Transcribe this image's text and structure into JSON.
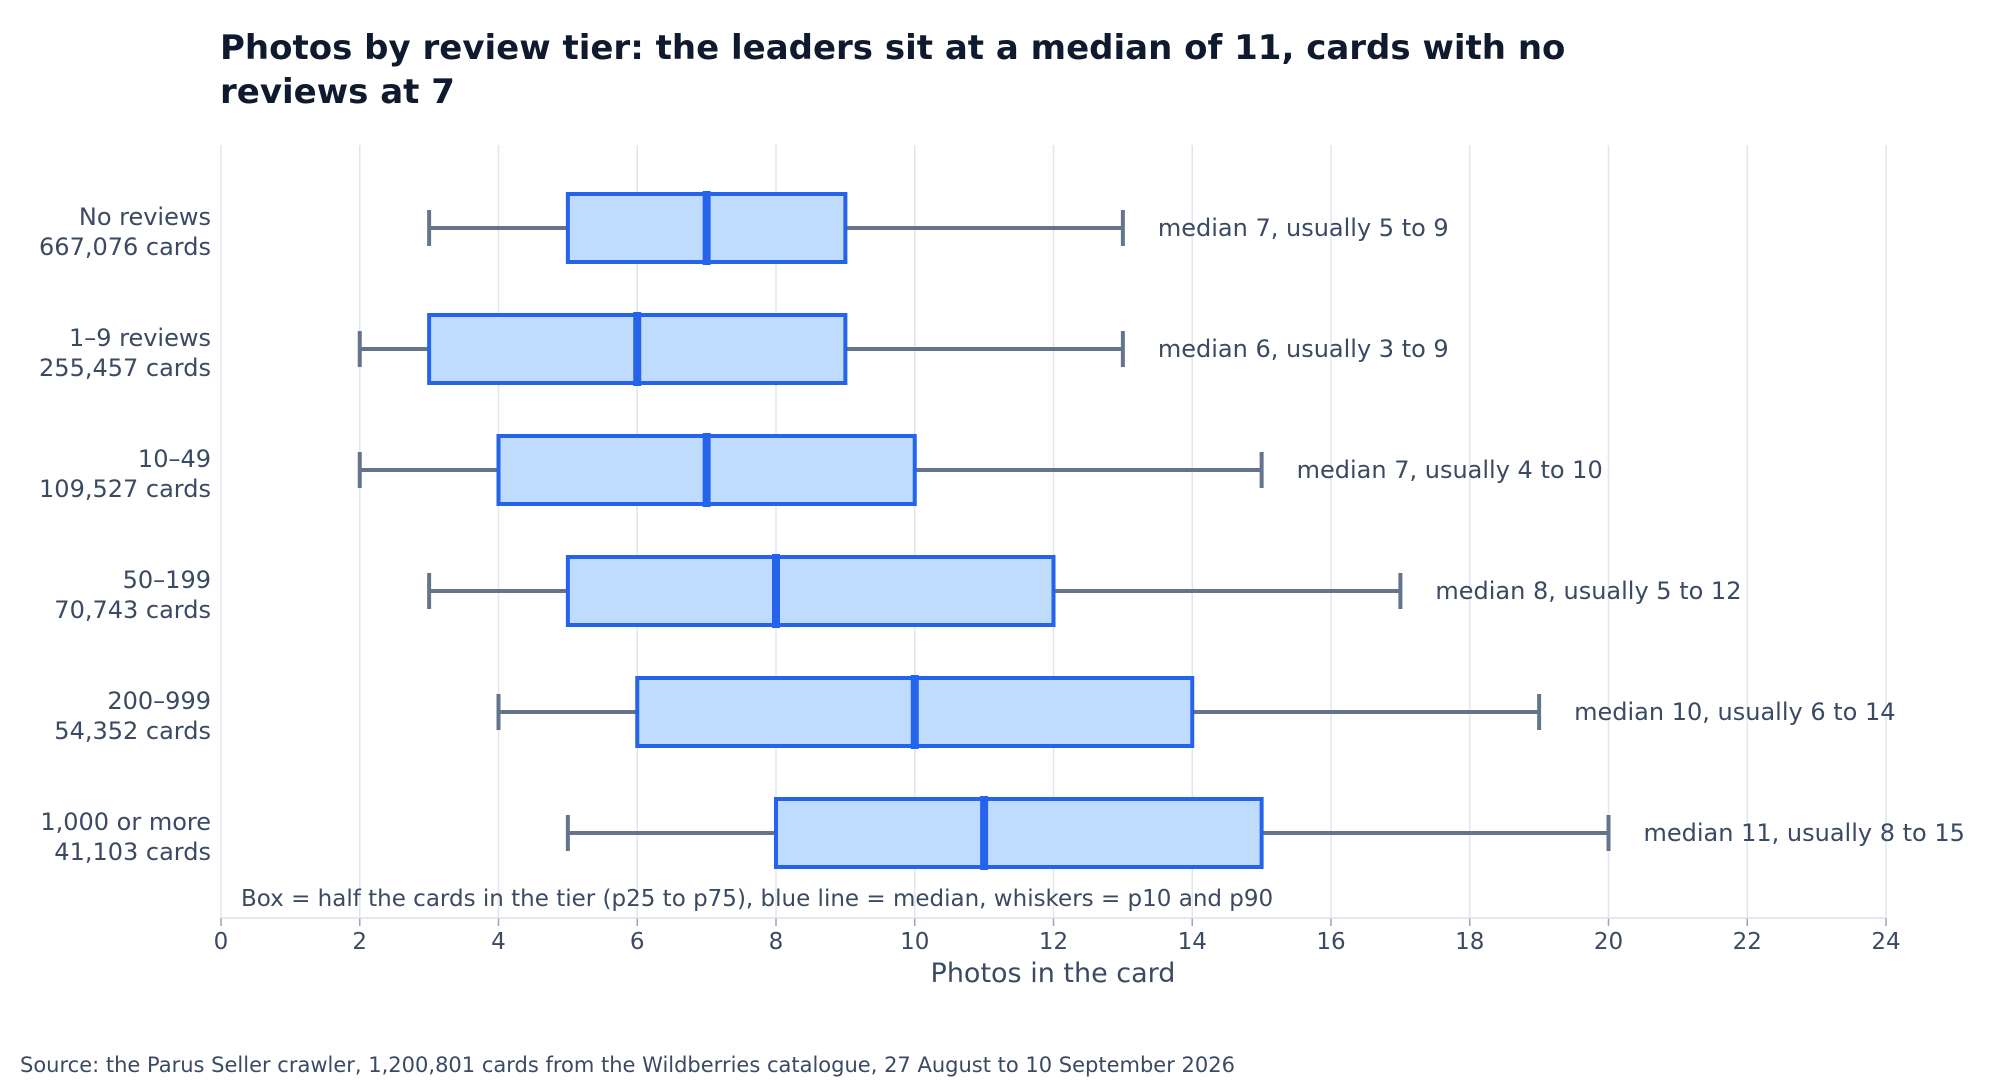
{
  "chart_data": {
    "type": "boxplot",
    "title": "Photos by review tier: the leaders sit at a median of 11, cards with no reviews at 7",
    "xlabel": "Photos in the card",
    "ylabel": "",
    "xlim": [
      0,
      24
    ],
    "xticks": [
      0,
      2,
      4,
      6,
      8,
      10,
      12,
      14,
      16,
      18,
      20,
      22,
      24
    ],
    "grid": "vertical",
    "legend": "",
    "note": "Box = half the cards in the tier (p25 to p75), blue line = median, whiskers = p10 and p90",
    "colors": {
      "box_fill": "#bfdbfe",
      "box_edge": "#2563eb",
      "median": "#2563eb",
      "whisker": "#64748b",
      "grid": "#e2e5ef"
    },
    "categories": [
      {
        "tier": "No reviews",
        "cards": "667,076 cards",
        "p10": 3,
        "p25": 5,
        "median": 7,
        "p75": 9,
        "p90": 13,
        "annotation": "median 7, usually 5 to 9"
      },
      {
        "tier": "1–9 reviews",
        "cards": "255,457 cards",
        "p10": 2,
        "p25": 3,
        "median": 6,
        "p75": 9,
        "p90": 13,
        "annotation": "median 6, usually 3 to 9"
      },
      {
        "tier": "10–49",
        "cards": "109,527 cards",
        "p10": 2,
        "p25": 4,
        "median": 7,
        "p75": 10,
        "p90": 15,
        "annotation": "median 7, usually 4 to 10"
      },
      {
        "tier": "50–199",
        "cards": "70,743 cards",
        "p10": 3,
        "p25": 5,
        "median": 8,
        "p75": 12,
        "p90": 17,
        "annotation": "median 8, usually 5 to 12"
      },
      {
        "tier": "200–999",
        "cards": "54,352 cards",
        "p10": 4,
        "p25": 6,
        "median": 10,
        "p75": 14,
        "p90": 19,
        "annotation": "median 10, usually 6 to 14"
      },
      {
        "tier": "1,000 or more",
        "cards": "41,103 cards",
        "p10": 5,
        "p25": 8,
        "median": 11,
        "p75": 15,
        "p90": 20,
        "annotation": "median 11, usually 8 to 15"
      }
    ]
  },
  "source": "Source: the Parus Seller crawler, 1,200,801 cards from the Wildberries catalogue, 27 August to 10 September 2026"
}
